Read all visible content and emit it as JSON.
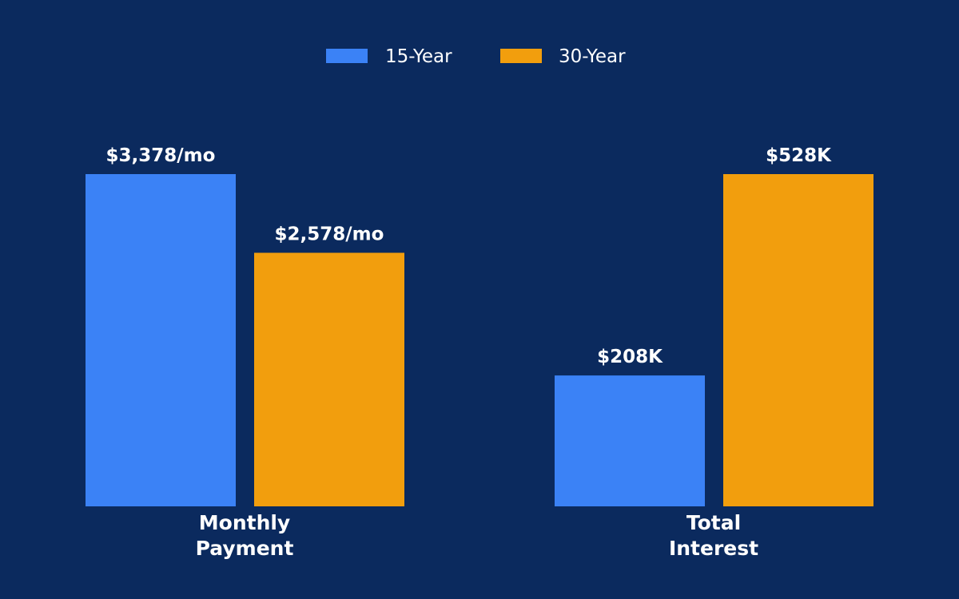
{
  "chart_data": {
    "type": "bar",
    "layout": "grouped",
    "categories": [
      "Monthly Payment",
      "Total Interest"
    ],
    "series": [
      {
        "name": "15-Year",
        "color": "#3b82f6",
        "values": [
          3378,
          208000
        ],
        "labels": [
          "$3,378/mo",
          "$208K"
        ]
      },
      {
        "name": "30-Year",
        "color": "#f29e0d",
        "values": [
          2578,
          528000
        ],
        "labels": [
          "$2,578/mo",
          "$528K"
        ]
      }
    ],
    "title": "",
    "xlabel": "",
    "ylabel": "",
    "grid": false,
    "y_axis_shown": false,
    "legend_position": "top-center",
    "background_color": "#0b2a5e",
    "text_color": "#ffffff"
  }
}
